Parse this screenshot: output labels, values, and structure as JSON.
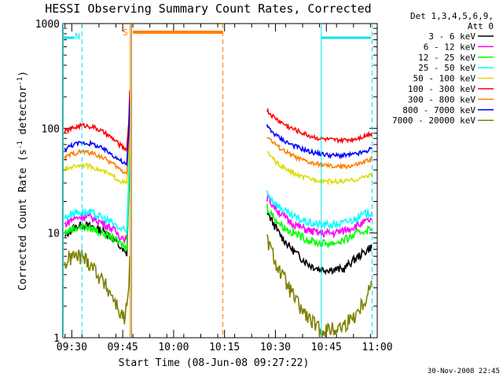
{
  "chart_data": {
    "type": "line",
    "title": "HESSI Observing Summary Count Rates, Corrected",
    "xlabel": "Start Time (08-Jun-08 09:27:22)",
    "ylabel_main": "Corrected Count Rate (s",
    "ylabel_sup1": "-1",
    "ylabel_mid": " detector",
    "ylabel_sup2": "-1",
    "ylabel_end": ")",
    "yscale": "log",
    "ylim": [
      1,
      1000
    ],
    "xlim_minutes": [
      27.37,
      120.0
    ],
    "x_ticks": [
      {
        "label": "09:30",
        "m": 30
      },
      {
        "label": "09:45",
        "m": 45
      },
      {
        "label": "10:00",
        "m": 60
      },
      {
        "label": "10:15",
        "m": 75
      },
      {
        "label": "10:30",
        "m": 90
      },
      {
        "label": "10:45",
        "m": 105
      },
      {
        "label": "11:00",
        "m": 120
      }
    ],
    "y_ticks": [
      {
        "label": "1",
        "v": 1
      },
      {
        "label": "10",
        "v": 10
      },
      {
        "label": "100",
        "v": 100
      },
      {
        "label": "1000",
        "v": 1000
      }
    ],
    "legend_header1": "Det 1,3,4,5,6,9,",
    "legend_header2": "Att 0",
    "footer": "30-Nov-2008 22:45",
    "flags": [
      {
        "label": "N",
        "color": "#00e5ee"
      },
      {
        "label": "S",
        "color": "#ff7f00"
      }
    ],
    "series": [
      {
        "name": "3 - 6 keV",
        "color": "#000000",
        "pre": [
          [
            27.9,
            9
          ],
          [
            30,
            11
          ],
          [
            33,
            12
          ],
          [
            36,
            11.5
          ],
          [
            39,
            10.5
          ],
          [
            42,
            9
          ],
          [
            44,
            7.5
          ],
          [
            45.5,
            6.5
          ],
          [
            46.2,
            6
          ]
        ],
        "post": [
          [
            87.5,
            16
          ],
          [
            89,
            13
          ],
          [
            91,
            10
          ],
          [
            94,
            7.5
          ],
          [
            97,
            6
          ],
          [
            100,
            5
          ],
          [
            103,
            4.5
          ],
          [
            107,
            4.5
          ],
          [
            110,
            4.5
          ],
          [
            113,
            5.5
          ],
          [
            116,
            6.5
          ],
          [
            118.5,
            7.5
          ]
        ]
      },
      {
        "name": "6 - 12 keV",
        "color": "#ff00ff",
        "pre": [
          [
            27.9,
            12
          ],
          [
            30,
            13.5
          ],
          [
            33,
            14.5
          ],
          [
            36,
            14
          ],
          [
            39,
            12.5
          ],
          [
            42,
            11
          ],
          [
            44,
            9.5
          ],
          [
            45.5,
            9
          ],
          [
            46.2,
            8.5
          ]
        ],
        "post": [
          [
            87.5,
            22
          ],
          [
            89,
            19
          ],
          [
            91,
            16
          ],
          [
            94,
            13
          ],
          [
            97,
            11.5
          ],
          [
            100,
            10.5
          ],
          [
            103,
            10
          ],
          [
            107,
            10
          ],
          [
            110,
            10.5
          ],
          [
            113,
            11.5
          ],
          [
            116,
            12.5
          ],
          [
            118.5,
            13.5
          ]
        ]
      },
      {
        "name": "12 - 25 keV",
        "color": "#00ff00",
        "pre": [
          [
            27.9,
            10
          ],
          [
            30,
            11
          ],
          [
            33,
            11.5
          ],
          [
            36,
            11
          ],
          [
            39,
            10
          ],
          [
            42,
            9
          ],
          [
            44,
            8
          ],
          [
            45.5,
            7.5
          ],
          [
            46.2,
            7
          ]
        ],
        "post": [
          [
            87.5,
            18
          ],
          [
            89,
            15
          ],
          [
            91,
            12.5
          ],
          [
            94,
            10.5
          ],
          [
            97,
            9.5
          ],
          [
            100,
            8.5
          ],
          [
            103,
            8
          ],
          [
            107,
            8
          ],
          [
            110,
            8.5
          ],
          [
            113,
            9.5
          ],
          [
            116,
            10.5
          ],
          [
            118.5,
            11
          ]
        ]
      },
      {
        "name": "25 - 50 keV",
        "color": "#00ffff",
        "pre": [
          [
            27.9,
            14
          ],
          [
            30,
            15.5
          ],
          [
            33,
            16
          ],
          [
            36,
            15.5
          ],
          [
            39,
            14
          ],
          [
            42,
            12.5
          ],
          [
            44,
            11
          ],
          [
            45.5,
            10.5
          ],
          [
            46.2,
            10
          ]
        ],
        "post": [
          [
            87.5,
            25
          ],
          [
            89,
            21
          ],
          [
            91,
            18
          ],
          [
            94,
            15
          ],
          [
            97,
            13.5
          ],
          [
            100,
            12.5
          ],
          [
            103,
            12
          ],
          [
            107,
            12
          ],
          [
            110,
            12.5
          ],
          [
            113,
            13.5
          ],
          [
            116,
            15
          ],
          [
            118.5,
            16
          ]
        ]
      },
      {
        "name": "50 - 100 keV",
        "color": "#dddd00",
        "pre": [
          [
            27.9,
            40
          ],
          [
            30,
            43
          ],
          [
            33,
            45
          ],
          [
            36,
            43
          ],
          [
            39,
            39
          ],
          [
            42,
            35
          ],
          [
            44,
            32
          ],
          [
            45.5,
            30
          ],
          [
            46.2,
            30
          ]
        ],
        "post": [
          [
            87.5,
            60
          ],
          [
            89,
            52
          ],
          [
            91,
            45
          ],
          [
            94,
            39
          ],
          [
            97,
            35
          ],
          [
            100,
            33
          ],
          [
            103,
            32
          ],
          [
            107,
            31
          ],
          [
            110,
            31
          ],
          [
            113,
            32
          ],
          [
            116,
            34
          ],
          [
            118.5,
            37
          ]
        ]
      },
      {
        "name": "100 - 300 keV",
        "color": "#ff0000",
        "pre": [
          [
            27.9,
            93
          ],
          [
            30,
            100
          ],
          [
            33,
            107
          ],
          [
            36,
            104
          ],
          [
            39,
            93
          ],
          [
            42,
            80
          ],
          [
            44,
            70
          ],
          [
            45.5,
            64
          ],
          [
            46.2,
            64
          ]
        ],
        "post": [
          [
            87.5,
            148
          ],
          [
            89,
            132
          ],
          [
            91,
            118
          ],
          [
            94,
            103
          ],
          [
            97,
            93
          ],
          [
            100,
            85
          ],
          [
            103,
            80
          ],
          [
            107,
            77
          ],
          [
            110,
            77
          ],
          [
            113,
            79
          ],
          [
            116,
            84
          ],
          [
            118.5,
            91
          ]
        ]
      },
      {
        "name": "300 - 800 keV",
        "color": "#ff7f00",
        "pre": [
          [
            27.9,
            52
          ],
          [
            30,
            57
          ],
          [
            33,
            60
          ],
          [
            36,
            58
          ],
          [
            39,
            53
          ],
          [
            42,
            46
          ],
          [
            44,
            41
          ],
          [
            45.5,
            38
          ],
          [
            46.2,
            37
          ]
        ],
        "post": [
          [
            87.5,
            85
          ],
          [
            89,
            75
          ],
          [
            91,
            66
          ],
          [
            94,
            57
          ],
          [
            97,
            51
          ],
          [
            100,
            47
          ],
          [
            103,
            45
          ],
          [
            107,
            43
          ],
          [
            110,
            43
          ],
          [
            113,
            44
          ],
          [
            116,
            47
          ],
          [
            118.5,
            52
          ]
        ]
      },
      {
        "name": "800 - 7000 keV",
        "color": "#0000ff",
        "pre": [
          [
            27.9,
            63
          ],
          [
            30,
            69
          ],
          [
            33,
            73
          ],
          [
            36,
            71
          ],
          [
            39,
            64
          ],
          [
            42,
            56
          ],
          [
            44,
            50
          ],
          [
            45.5,
            46
          ],
          [
            46.2,
            45
          ]
        ],
        "post": [
          [
            87.5,
            105
          ],
          [
            89,
            93
          ],
          [
            91,
            82
          ],
          [
            94,
            72
          ],
          [
            97,
            65
          ],
          [
            100,
            60
          ],
          [
            103,
            57
          ],
          [
            107,
            55
          ],
          [
            110,
            55
          ],
          [
            113,
            56
          ],
          [
            116,
            59
          ],
          [
            118.5,
            64
          ]
        ]
      },
      {
        "name": "7000 - 20000 keV",
        "color": "#808000",
        "pre": [
          [
            27.9,
            5
          ],
          [
            30,
            6
          ],
          [
            33,
            6
          ],
          [
            36,
            5
          ],
          [
            39,
            3.5
          ],
          [
            42,
            2.5
          ],
          [
            44,
            1.8
          ],
          [
            45.5,
            1.5
          ],
          [
            46.2,
            2
          ]
        ],
        "post": [
          [
            87.5,
            9
          ],
          [
            89,
            6.5
          ],
          [
            91,
            4.5
          ],
          [
            94,
            3
          ],
          [
            97,
            2
          ],
          [
            100,
            1.5
          ],
          [
            103,
            1.2
          ],
          [
            107,
            1.2
          ],
          [
            110,
            1.3
          ],
          [
            113,
            1.6
          ],
          [
            116,
            2.2
          ],
          [
            118.5,
            3.5
          ]
        ]
      }
    ]
  }
}
